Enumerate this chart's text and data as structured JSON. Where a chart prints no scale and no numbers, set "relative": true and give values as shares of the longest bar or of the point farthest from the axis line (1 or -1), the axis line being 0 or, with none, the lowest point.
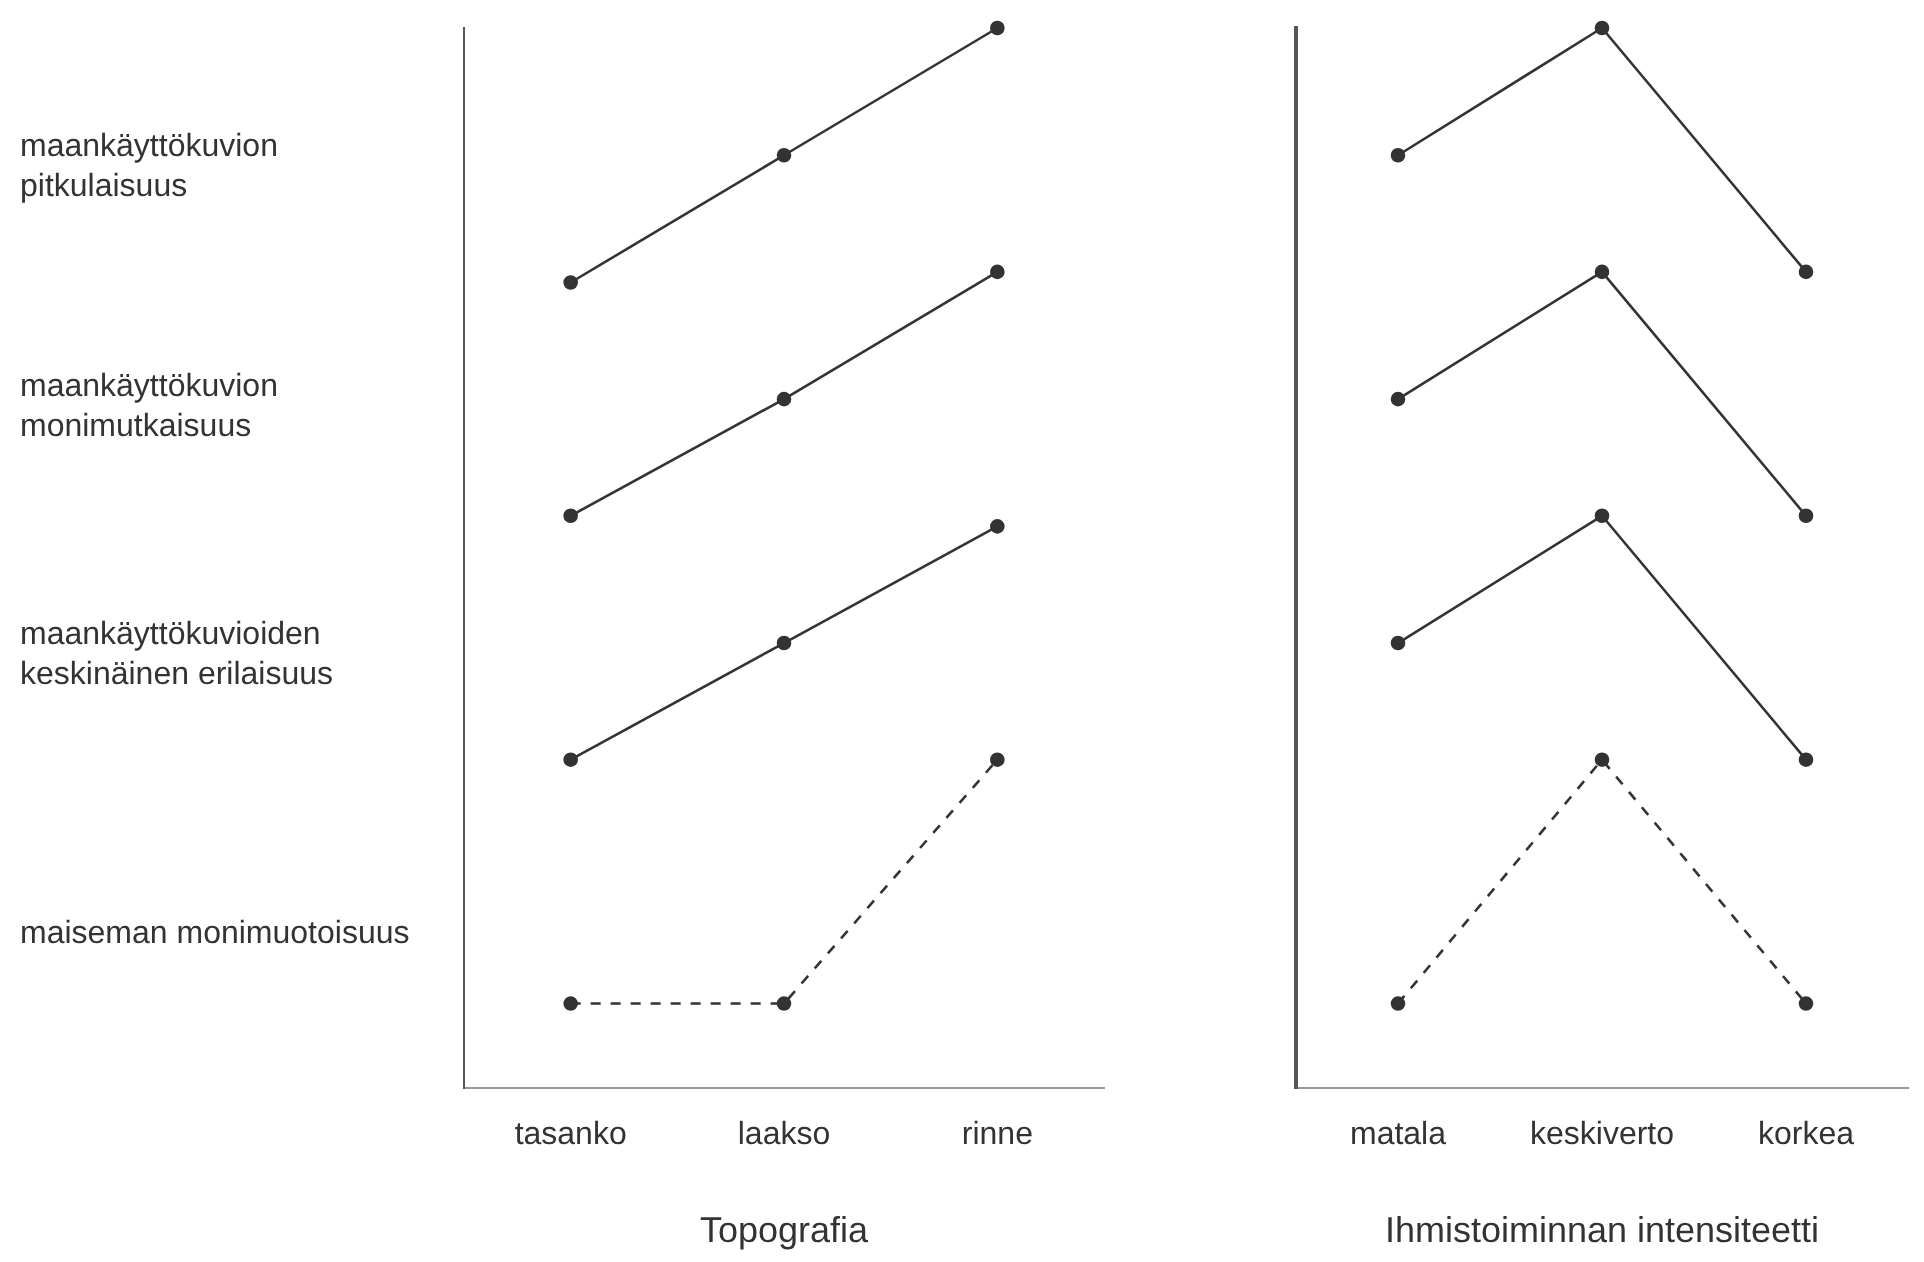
{
  "chart_data": [
    {
      "type": "line",
      "relative": true,
      "categories": [
        "tasanko",
        "laakso",
        "rinne"
      ],
      "xlabel": "Topografia",
      "marker": "circle",
      "grid": false,
      "annotations": [
        "maankäyttökuvion pitkulaisuus",
        "maankäyttökuvion monimutkaisuus",
        "maankäyttökuvioiden keskinäinen erilaisuus",
        "maiseman monimuotoisuus"
      ],
      "series": [
        {
          "color": "#333333",
          "line_style": "solid",
          "values": [
            0.76,
            0.88,
            1.0
          ]
        },
        {
          "color": "#333333",
          "line_style": "solid",
          "values": [
            0.54,
            0.65,
            0.77
          ]
        },
        {
          "color": "#333333",
          "line_style": "solid",
          "values": [
            0.31,
            0.42,
            0.53
          ]
        },
        {
          "color": "#333333",
          "line_style": "dashed",
          "values": [
            0.08,
            0.08,
            0.31
          ]
        }
      ]
    },
    {
      "type": "line",
      "relative": true,
      "categories": [
        "matala",
        "keskiverto",
        "korkea"
      ],
      "xlabel": "Ihmistoiminnan intensiteetti",
      "marker": "circle",
      "grid": false,
      "series": [
        {
          "color": "#333333",
          "line_style": "solid",
          "values": [
            0.88,
            1.0,
            0.77
          ]
        },
        {
          "color": "#333333",
          "line_style": "solid",
          "values": [
            0.65,
            0.77,
            0.54
          ]
        },
        {
          "color": "#333333",
          "line_style": "solid",
          "values": [
            0.42,
            0.54,
            0.31
          ]
        },
        {
          "color": "#333333",
          "line_style": "dashed",
          "values": [
            0.08,
            0.31,
            0.08
          ]
        }
      ]
    }
  ]
}
